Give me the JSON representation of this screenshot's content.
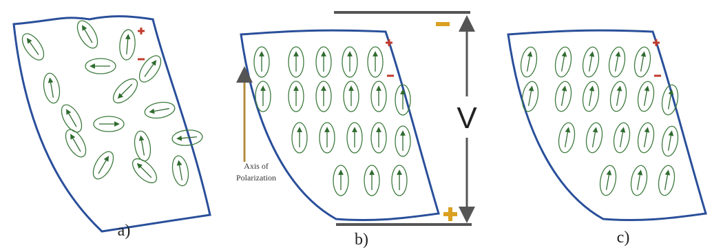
{
  "panels": [
    {
      "label": "a)"
    },
    {
      "label": "b)"
    },
    {
      "label": "c)"
    }
  ],
  "voltage": {
    "label": "V"
  },
  "axis": {
    "label_lines": [
      "Axis of",
      "Polarization"
    ]
  }
}
